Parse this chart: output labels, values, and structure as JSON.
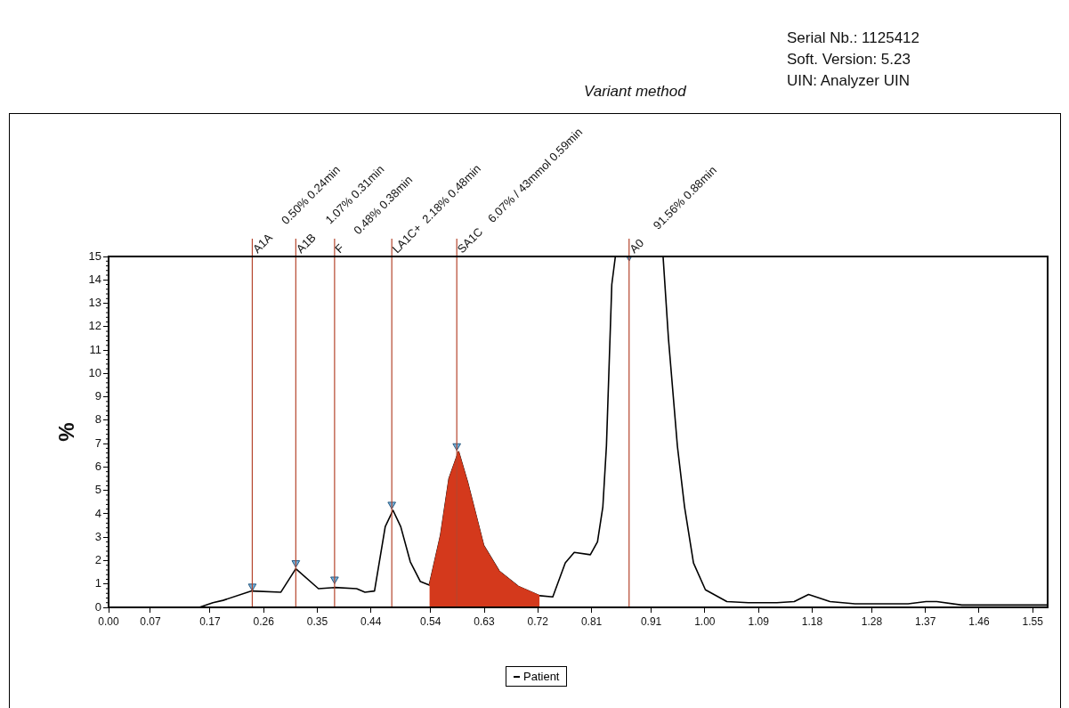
{
  "chart_data": {
    "type": "line",
    "ylabel": "%",
    "annotations": [
      "Variant method",
      "Serial Nb.: 1125412",
      "Soft. Version: 5.23",
      "UIN: Analyzer UIN"
    ],
    "xlim": [
      0,
      1.575
    ],
    "ylim": [
      0,
      15
    ],
    "xticks": [
      {
        "value": 0,
        "label": "0.00"
      },
      {
        "value": 0.07,
        "label": "0.07"
      },
      {
        "value": 0.17,
        "label": "0.17"
      },
      {
        "value": 0.26,
        "label": "0.26"
      },
      {
        "value": 0.35,
        "label": "0.35"
      },
      {
        "value": 0.44,
        "label": "0.44"
      },
      {
        "value": 0.54,
        "label": "0.54"
      },
      {
        "value": 0.63,
        "label": "0.63"
      },
      {
        "value": 0.72,
        "label": "0.72"
      },
      {
        "value": 0.81,
        "label": "0.81"
      },
      {
        "value": 0.91,
        "label": "0.91"
      },
      {
        "value": 1,
        "label": "1.00"
      },
      {
        "value": 1.09,
        "label": "1.09"
      },
      {
        "value": 1.18,
        "label": "1.18"
      },
      {
        "value": 1.28,
        "label": "1.28"
      },
      {
        "value": 1.37,
        "label": "1.37"
      },
      {
        "value": 1.46,
        "label": "1.46"
      },
      {
        "value": 1.55,
        "label": "1.55"
      }
    ],
    "yticks": [
      0,
      1,
      2,
      3,
      4,
      5,
      6,
      7,
      8,
      9,
      10,
      11,
      12,
      13,
      14,
      15
    ],
    "legend": "bottom",
    "series": [
      {
        "name": "Patient",
        "type": "line",
        "color": "#000000",
        "x": [
          0,
          0.152,
          0.175,
          0.192,
          0.24,
          0.289,
          0.314,
          0.352,
          0.379,
          0.416,
          0.43,
          0.446,
          0.464,
          0.477,
          0.49,
          0.506,
          0.523,
          0.538,
          0.557,
          0.571,
          0.587,
          0.602,
          0.629,
          0.655,
          0.687,
          0.723,
          0.745,
          0.766,
          0.781,
          0.808,
          0.82,
          0.829,
          0.835,
          0.844,
          0.85,
          0.89,
          0.93,
          0.939,
          0.954,
          0.966,
          0.981,
          1.001,
          1.037,
          1.073,
          1.121,
          1.15,
          1.174,
          1.21,
          1.252,
          1.341,
          1.371,
          1.389,
          1.431,
          1.575
        ],
        "values": [
          0,
          0,
          0.2,
          0.3,
          0.7,
          0.65,
          1.65,
          0.8,
          0.85,
          0.8,
          0.65,
          0.7,
          3.45,
          4.15,
          3.45,
          1.95,
          1.1,
          0.95,
          3.1,
          5.5,
          6.65,
          5.35,
          2.65,
          1.55,
          0.9,
          0.5,
          0.45,
          1.9,
          2.35,
          2.25,
          2.8,
          4.3,
          6.9,
          13.8,
          15,
          null,
          15,
          11.5,
          6.9,
          4.3,
          1.9,
          0.75,
          0.25,
          0.2,
          0.2,
          0.25,
          0.55,
          0.25,
          0.15,
          0.15,
          0.25,
          0.25,
          0.1,
          0.1
        ]
      },
      {
        "type": "area",
        "color": "#d4391c",
        "x": [
          0.538,
          0.557,
          0.571,
          0.587,
          0.602,
          0.629,
          0.655,
          0.687,
          0.723
        ],
        "values": [
          0.95,
          3.1,
          5.5,
          6.65,
          5.35,
          2.65,
          1.55,
          0.9,
          0.5
        ]
      },
      {
        "type": "scatter",
        "color": "#6fb0dc",
        "marker": "triangle",
        "x": [
          0.241,
          0.314,
          0.379,
          0.475,
          0.584,
          0.873
        ],
        "values": [
          0.9,
          1.9,
          1.2,
          4.4,
          6.9,
          15
        ]
      }
    ],
    "ref_lines": [
      {
        "axis": "x",
        "value": 0.241,
        "label": "A1A      0.50% 0.24min",
        "color": "#b5452d"
      },
      {
        "axis": "x",
        "value": 0.314,
        "label": "A1B      1.07% 0.31min",
        "color": "#b5452d"
      },
      {
        "axis": "x",
        "value": 0.379,
        "label": "F      0.48% 0.38min",
        "color": "#b5452d"
      },
      {
        "axis": "x",
        "value": 0.475,
        "label": "LA1C+  2.18% 0.48min",
        "color": "#b5452d"
      },
      {
        "axis": "x",
        "value": 0.584,
        "label": "SA1C    6.07% / 43mmol 0.59min",
        "color": "#b5452d"
      },
      {
        "axis": "x",
        "value": 0.873,
        "label": "A0      91.56% 0.88min",
        "color": "#b5452d"
      }
    ]
  }
}
